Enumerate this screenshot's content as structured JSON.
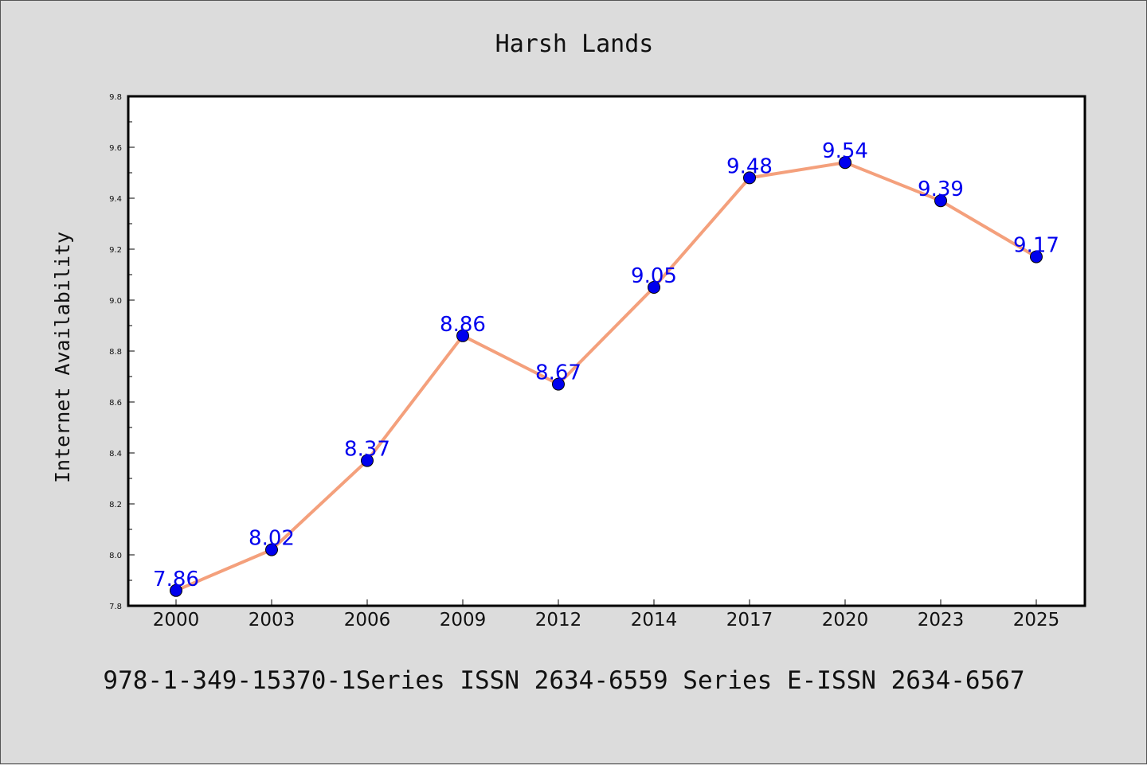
{
  "chart_data": {
    "type": "line",
    "title": "Harsh Lands",
    "xlabel": "",
    "ylabel": "Internet Availability",
    "categories": [
      "2000",
      "2003",
      "2006",
      "2009",
      "2012",
      "2014",
      "2017",
      "2020",
      "2023",
      "2025"
    ],
    "series": [
      {
        "values": [
          7.86,
          8.02,
          8.37,
          8.86,
          8.67,
          9.05,
          9.48,
          9.54,
          9.39,
          9.17
        ],
        "labels": [
          "7.86",
          "8.02",
          "8.37",
          "8.86",
          "8.67",
          "9.05",
          "9.48",
          "9.54",
          "9.39",
          "9.17"
        ]
      }
    ],
    "ylim": [
      7.8,
      9.8
    ],
    "yticks": [
      "7.8",
      "8.0",
      "8.2",
      "8.4",
      "8.6",
      "8.8",
      "9.0",
      "9.2",
      "9.4",
      "9.6",
      "9.8"
    ],
    "grid": false,
    "legend": "none",
    "colors": {
      "line": "#f4a07c",
      "marker": "#0000ee",
      "label": "#0000ee",
      "background": "#dcdcdc",
      "plot_background": "#ffffff"
    }
  },
  "footer": "978-1-349-15370-1Series ISSN 2634-6559 Series E-ISSN 2634-6567"
}
